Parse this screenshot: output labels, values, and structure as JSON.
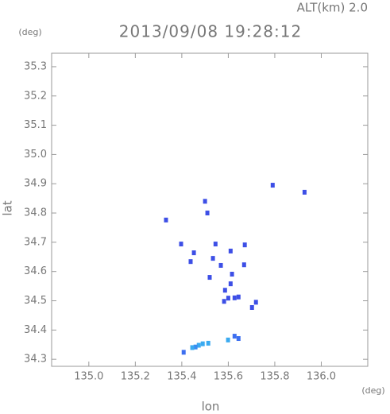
{
  "chart_data": {
    "type": "scatter",
    "title": "2013/09/08 19:28:12",
    "subtitle": "ALT(km) 2.0",
    "x_label": "lon",
    "y_label": "lat",
    "x_unit": "(deg)",
    "y_unit": "(deg)",
    "xlim": [
      134.84,
      136.2
    ],
    "ylim": [
      34.276,
      35.346
    ],
    "xticks": [
      {
        "value": 135,
        "label": "135.0"
      },
      135.2,
      135.4,
      135.6,
      135.8,
      {
        "value": 136,
        "label": "136.0"
      }
    ],
    "yticks": [
      34.3,
      34.4,
      34.5,
      34.6,
      34.7,
      34.8,
      34.9,
      {
        "value": 35,
        "label": "35.0"
      },
      35.1,
      35.2,
      35.3
    ],
    "x": [
      135.791,
      135.928,
      135.5,
      135.51,
      135.332,
      135.397,
      135.545,
      135.671,
      135.61,
      135.452,
      135.438,
      135.534,
      135.568,
      135.668,
      135.52,
      135.616,
      135.61,
      135.586,
      135.6,
      135.627,
      135.582,
      135.644,
      135.719,
      135.702,
      135.627,
      135.644,
      135.599,
      135.514,
      135.49,
      135.473,
      135.459,
      135.408,
      135.445
    ],
    "y": [
      34.895,
      34.871,
      34.84,
      34.8,
      34.776,
      34.694,
      34.694,
      34.691,
      34.67,
      34.664,
      34.634,
      34.645,
      34.621,
      34.623,
      34.58,
      34.591,
      34.558,
      34.536,
      34.509,
      34.51,
      34.498,
      34.513,
      34.495,
      34.477,
      34.379,
      34.371,
      34.366,
      34.355,
      34.353,
      34.348,
      34.342,
      34.324,
      34.34
    ],
    "colors": [
      "#3d4fe6",
      "#3d4fe6",
      "#3d4fe6",
      "#3d4fe6",
      "#3d4fe6",
      "#3d4fe6",
      "#3d4fe6",
      "#3d4fe6",
      "#3d4fe6",
      "#3d4fe6",
      "#3d4fe6",
      "#3d4fe6",
      "#3d4fe6",
      "#3d4fe6",
      "#3d4fe6",
      "#3d4fe6",
      "#3d4fe6",
      "#3d4fe6",
      "#3d4fe6",
      "#3d4fe6",
      "#3d4fe6",
      "#3d4fe6",
      "#3d4fe6",
      "#3d4fe6",
      "#3d6ff0",
      "#3d6ff0",
      "#3aaaf0",
      "#3aaaf0",
      "#3aaaf0",
      "#3aaaf0",
      "#3a8cf0",
      "#3d6ff0",
      "#3aaaf0"
    ]
  }
}
